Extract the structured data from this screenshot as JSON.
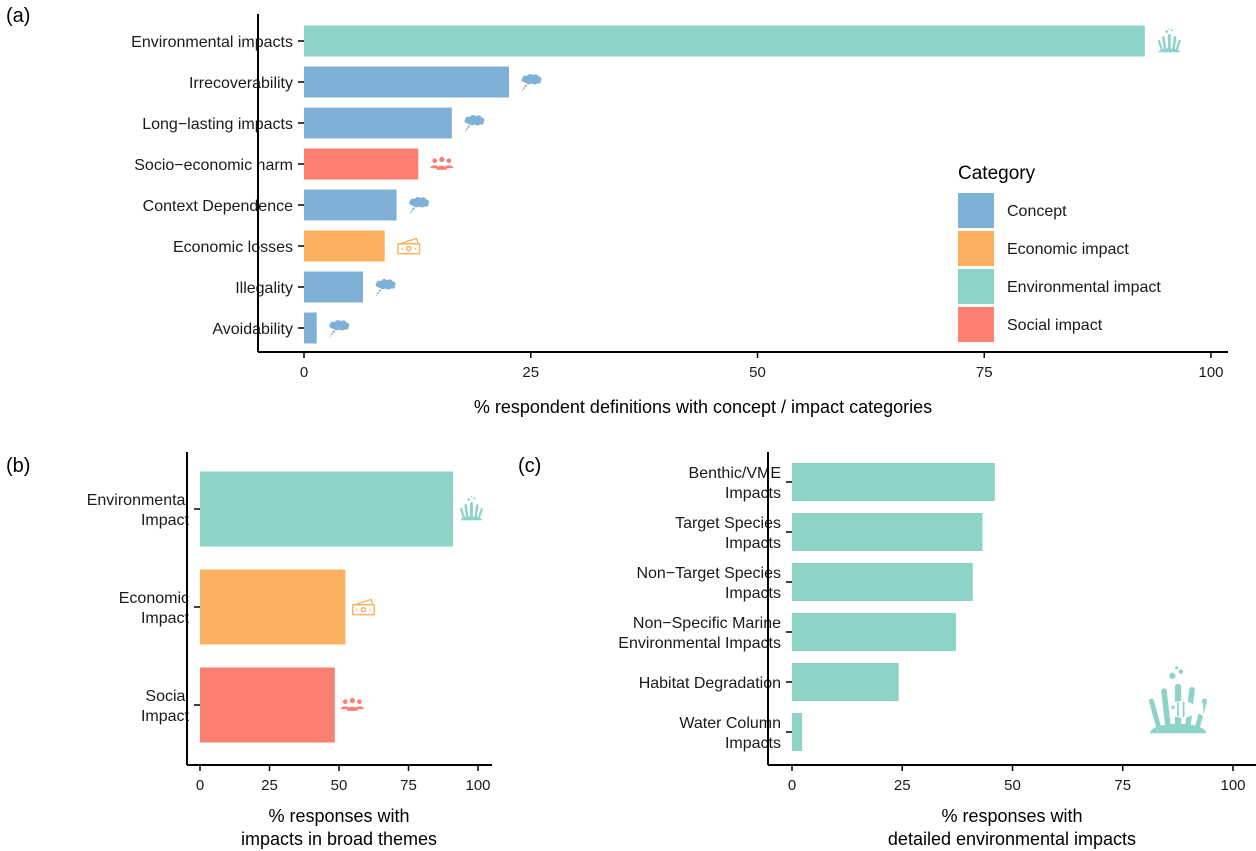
{
  "colors": {
    "Concept": "#7fb1d6",
    "Economic impact": "#fbb15f",
    "Environmental impact": "#8dd3c7",
    "Social impact": "#fb8072"
  },
  "legend": {
    "title": "Category",
    "entries": [
      {
        "label": "Concept",
        "color": "#7fb1d6"
      },
      {
        "label": "Economic impact",
        "color": "#fbb15f"
      },
      {
        "label": "Environmental impact",
        "color": "#8dd3c7"
      },
      {
        "label": "Social impact",
        "color": "#fb8072"
      }
    ]
  },
  "chart_data": [
    {
      "panel": "(a)",
      "type": "bar",
      "orientation": "horizontal",
      "xlabel": "% respondent definitions with concept / impact categories",
      "xlim": [
        0,
        100
      ],
      "xticks": [
        0,
        25,
        50,
        75,
        100
      ],
      "legend_position": "right",
      "bars": [
        {
          "label": "Environmental impacts",
          "value": 92.7,
          "category": "Environmental impact",
          "icon": "coral-icon"
        },
        {
          "label": "Irrecoverability",
          "value": 22.6,
          "category": "Concept",
          "icon": "thought-cloud-icon"
        },
        {
          "label": "Long−lasting impacts",
          "value": 16.3,
          "category": "Concept",
          "icon": "thought-cloud-icon"
        },
        {
          "label": "Socio−economic harm",
          "value": 12.6,
          "category": "Social impact",
          "icon": "people-icon"
        },
        {
          "label": "Context Dependence",
          "value": 10.2,
          "category": "Concept",
          "icon": "thought-cloud-icon"
        },
        {
          "label": "Economic losses",
          "value": 8.9,
          "category": "Economic impact",
          "icon": "money-icon"
        },
        {
          "label": "Illegality",
          "value": 6.5,
          "category": "Concept",
          "icon": "thought-cloud-icon"
        },
        {
          "label": "Avoidability",
          "value": 1.4,
          "category": "Concept",
          "icon": "thought-cloud-icon"
        }
      ]
    },
    {
      "panel": "(b)",
      "type": "bar",
      "orientation": "horizontal",
      "xlabel_lines": [
        "% responses with",
        "impacts in broad themes"
      ],
      "xlim": [
        0,
        100
      ],
      "xticks": [
        0,
        25,
        50,
        75,
        100
      ],
      "bars": [
        {
          "label_lines": [
            "Environmental",
            "Impact"
          ],
          "value": 91.0,
          "category": "Environmental impact",
          "icon": "coral-icon"
        },
        {
          "label_lines": [
            "Economic",
            "Impact"
          ],
          "value": 52.3,
          "category": "Economic impact",
          "icon": "money-icon"
        },
        {
          "label_lines": [
            "Social",
            "Impact"
          ],
          "value": 48.5,
          "category": "Social impact",
          "icon": "people-icon"
        }
      ]
    },
    {
      "panel": "(c)",
      "type": "bar",
      "orientation": "horizontal",
      "xlabel_lines": [
        "% responses with",
        "detailed environmental impacts"
      ],
      "xlim": [
        0,
        100
      ],
      "xticks": [
        0,
        25,
        50,
        75,
        100
      ],
      "decoration_icon": "coral-fish-icon",
      "bars": [
        {
          "label_lines": [
            "Benthic/VME",
            "Impacts"
          ],
          "value": 46.0,
          "category": "Environmental impact"
        },
        {
          "label_lines": [
            "Target Species",
            "Impacts"
          ],
          "value": 43.2,
          "category": "Environmental impact"
        },
        {
          "label_lines": [
            "Non−Target Species",
            "Impacts"
          ],
          "value": 41.0,
          "category": "Environmental impact"
        },
        {
          "label_lines": [
            "Non−Specific Marine",
            "Environmental Impacts"
          ],
          "value": 37.2,
          "category": "Environmental impact"
        },
        {
          "label_lines": [
            "Habitat Degradation"
          ],
          "value": 24.2,
          "category": "Environmental impact"
        },
        {
          "label_lines": [
            "Water Column",
            "Impacts"
          ],
          "value": 2.3,
          "category": "Environmental impact"
        }
      ]
    }
  ]
}
